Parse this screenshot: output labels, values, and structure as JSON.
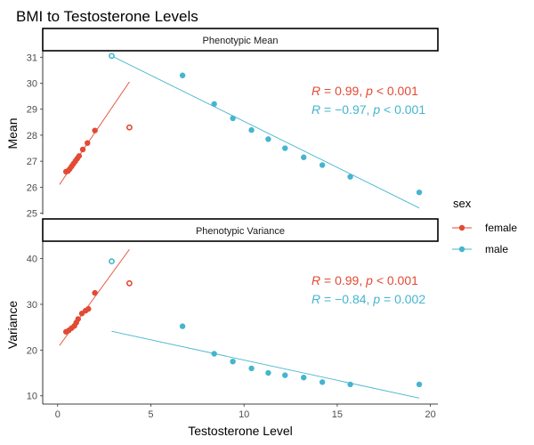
{
  "chart_data": {
    "type": "scatter",
    "title": "BMI to Testosterone Levels",
    "xlabel": "Testosterone Level",
    "xlim": [
      -0.8,
      20.4
    ],
    "xticks": [
      0,
      5,
      10,
      15,
      20
    ],
    "legend": {
      "title": "sex",
      "placement": "right",
      "entries": [
        {
          "label": "female",
          "color": "#E24A33"
        },
        {
          "label": "male",
          "color": "#45B5CF"
        }
      ]
    },
    "panels": [
      {
        "strip": "Phenotypic Mean",
        "ylabel": "Mean",
        "ylim": [
          24.95,
          31.25
        ],
        "yticks": [
          25,
          26,
          27,
          28,
          29,
          30,
          31
        ],
        "series": [
          {
            "name": "female",
            "color": "#E24A33",
            "points": [
              [
                0.45,
                26.6
              ],
              [
                0.55,
                26.62
              ],
              [
                0.65,
                26.7
              ],
              [
                0.75,
                26.8
              ],
              [
                0.85,
                26.9
              ],
              [
                0.95,
                27.0
              ],
              [
                1.05,
                27.1
              ],
              [
                1.15,
                27.2
              ],
              [
                1.35,
                27.45
              ],
              [
                1.6,
                27.7
              ],
              [
                2.0,
                28.18
              ]
            ],
            "outliers": [
              [
                3.85,
                28.3
              ]
            ],
            "fit": [
              [
                0.1,
                26.1
              ],
              [
                3.85,
                30.05
              ]
            ]
          },
          {
            "name": "male",
            "color": "#45B5CF",
            "points": [
              [
                6.7,
                30.3
              ],
              [
                8.4,
                29.2
              ],
              [
                9.4,
                28.65
              ],
              [
                10.4,
                28.2
              ],
              [
                11.3,
                27.85
              ],
              [
                12.2,
                27.5
              ],
              [
                13.2,
                27.15
              ],
              [
                14.2,
                26.85
              ],
              [
                15.7,
                26.4
              ],
              [
                19.4,
                25.8
              ]
            ],
            "outliers": [
              [
                2.9,
                31.05
              ]
            ],
            "fit": [
              [
                2.9,
                31.05
              ],
              [
                19.4,
                25.2
              ]
            ]
          }
        ],
        "stats": [
          {
            "r": "0.99",
            "p": "< 0.001",
            "color": "#E24A33"
          },
          {
            "r": "−0.97",
            "p": "< 0.001",
            "color": "#45B5CF"
          }
        ]
      },
      {
        "strip": "Phenotypic Variance",
        "ylabel": "Variance",
        "ylim": [
          8.2,
          43.8
        ],
        "yticks": [
          10,
          20,
          30,
          40
        ],
        "series": [
          {
            "name": "female",
            "color": "#E24A33",
            "points": [
              [
                0.45,
                24.0
              ],
              [
                0.6,
                24.3
              ],
              [
                0.75,
                24.8
              ],
              [
                0.9,
                25.3
              ],
              [
                1.0,
                26.0
              ],
              [
                1.1,
                26.8
              ],
              [
                1.3,
                28.0
              ],
              [
                1.5,
                28.6
              ],
              [
                1.65,
                29.0
              ],
              [
                2.0,
                32.5
              ]
            ],
            "outliers": [
              [
                3.85,
                34.6
              ]
            ],
            "fit": [
              [
                0.1,
                21.0
              ],
              [
                3.85,
                42.0
              ]
            ]
          },
          {
            "name": "male",
            "color": "#45B5CF",
            "points": [
              [
                6.7,
                25.2
              ],
              [
                8.4,
                19.2
              ],
              [
                9.4,
                17.5
              ],
              [
                10.4,
                16.0
              ],
              [
                11.3,
                15.0
              ],
              [
                12.2,
                14.5
              ],
              [
                13.2,
                14.0
              ],
              [
                14.2,
                13.0
              ],
              [
                15.7,
                12.5
              ],
              [
                19.4,
                12.5
              ]
            ],
            "outliers": [
              [
                2.9,
                39.4
              ]
            ],
            "fit": [
              [
                2.9,
                24.1
              ],
              [
                19.4,
                9.5
              ]
            ]
          }
        ],
        "stats": [
          {
            "r": "0.99",
            "p": "< 0.001",
            "color": "#E24A33"
          },
          {
            "r": "−0.84",
            "p": "= 0.002",
            "color": "#45B5CF"
          }
        ]
      }
    ]
  }
}
